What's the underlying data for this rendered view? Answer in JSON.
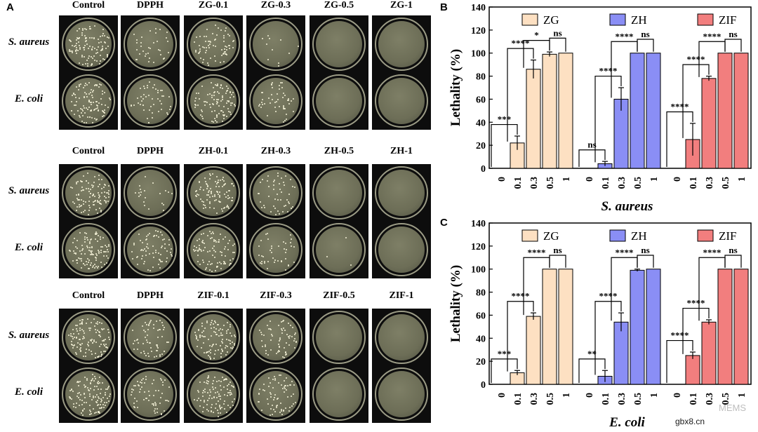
{
  "panel_a": {
    "letter": "A",
    "groups": [
      {
        "columns": [
          "Control",
          "DPPH",
          "ZG-0.1",
          "ZG-0.3",
          "ZG-0.5",
          "ZG-1"
        ]
      },
      {
        "columns": [
          "Control",
          "DPPH",
          "ZH-0.1",
          "ZH-0.3",
          "ZH-0.5",
          "ZH-1"
        ]
      },
      {
        "columns": [
          "Control",
          "DPPH",
          "ZIF-0.1",
          "ZIF-0.3",
          "ZIF-0.5",
          "ZIF-1"
        ]
      }
    ],
    "row_labels": [
      "S. aureus",
      "E. coli"
    ],
    "colony_density": [
      [
        [
          0.8,
          0.25,
          0.5,
          0.08,
          0,
          0
        ],
        [
          0.75,
          0.35,
          0.7,
          0.35,
          0,
          0
        ]
      ],
      [
        [
          0.75,
          0.15,
          0.7,
          0.35,
          0,
          0
        ],
        [
          0.8,
          0.5,
          0.65,
          0.3,
          0.02,
          0
        ]
      ],
      [
        [
          0.85,
          0.45,
          0.75,
          0.45,
          0,
          0
        ],
        [
          0.85,
          0.45,
          0.75,
          0.5,
          0,
          0
        ]
      ]
    ],
    "colors": {
      "tile": "#0d0d0d",
      "agar_top": "#7e7f66",
      "agar_mid": "#6d6e57",
      "agar_bottom": "#4f5141",
      "colony": "#f3f0d6"
    }
  },
  "chart_data": [
    {
      "letter": "B",
      "type": "bar",
      "xlabel": "S. aureus",
      "ylabel": "Lethality (%)",
      "ylim": [
        0,
        140
      ],
      "yticks": [
        0,
        20,
        40,
        60,
        80,
        100,
        120,
        140
      ],
      "categories": [
        "0",
        "0.1",
        "0.3",
        "0.5",
        "1"
      ],
      "series": [
        {
          "name": "ZG",
          "color": "#fde0c2",
          "values": [
            0,
            22,
            86,
            99,
            100
          ],
          "errors": [
            0,
            6,
            8,
            2,
            0
          ],
          "sig": [
            "***",
            "****",
            "*",
            "ns"
          ]
        },
        {
          "name": "ZH",
          "color": "#8a8ef5",
          "values": [
            0,
            4,
            60,
            100,
            100
          ],
          "errors": [
            0,
            2,
            10,
            0,
            0
          ],
          "sig": [
            "ns",
            "****",
            "****",
            "ns"
          ]
        },
        {
          "name": "ZIF",
          "color": "#f27e7e",
          "values": [
            0,
            25,
            78,
            100,
            100
          ],
          "errors": [
            0,
            14,
            2,
            0,
            0
          ],
          "sig": [
            "****",
            "****",
            "****",
            "ns"
          ]
        }
      ]
    },
    {
      "letter": "C",
      "type": "bar",
      "xlabel": "E. coli",
      "ylabel": "Lethality (%)",
      "ylim": [
        0,
        140
      ],
      "yticks": [
        0,
        20,
        40,
        60,
        80,
        100,
        120,
        140
      ],
      "categories": [
        "0",
        "0.1",
        "0.3",
        "0.5",
        "1"
      ],
      "series": [
        {
          "name": "ZG",
          "color": "#fde0c2",
          "values": [
            0,
            10,
            59,
            100,
            100
          ],
          "errors": [
            0,
            2,
            3,
            0,
            0
          ],
          "sig": [
            "***",
            "****",
            "****",
            "ns"
          ]
        },
        {
          "name": "ZH",
          "color": "#8a8ef5",
          "values": [
            0,
            7,
            54,
            99,
            100
          ],
          "errors": [
            0,
            5,
            8,
            1,
            0
          ],
          "sig": [
            "**",
            "****",
            "****",
            "ns"
          ]
        },
        {
          "name": "ZIF",
          "color": "#f27e7e",
          "values": [
            0,
            25,
            54,
            100,
            100
          ],
          "errors": [
            0,
            3,
            2,
            0,
            0
          ],
          "sig": [
            "****",
            "****",
            "****",
            "ns"
          ]
        }
      ]
    }
  ],
  "watermark": {
    "site": "gbx8.cn",
    "mark": "MEMS"
  }
}
